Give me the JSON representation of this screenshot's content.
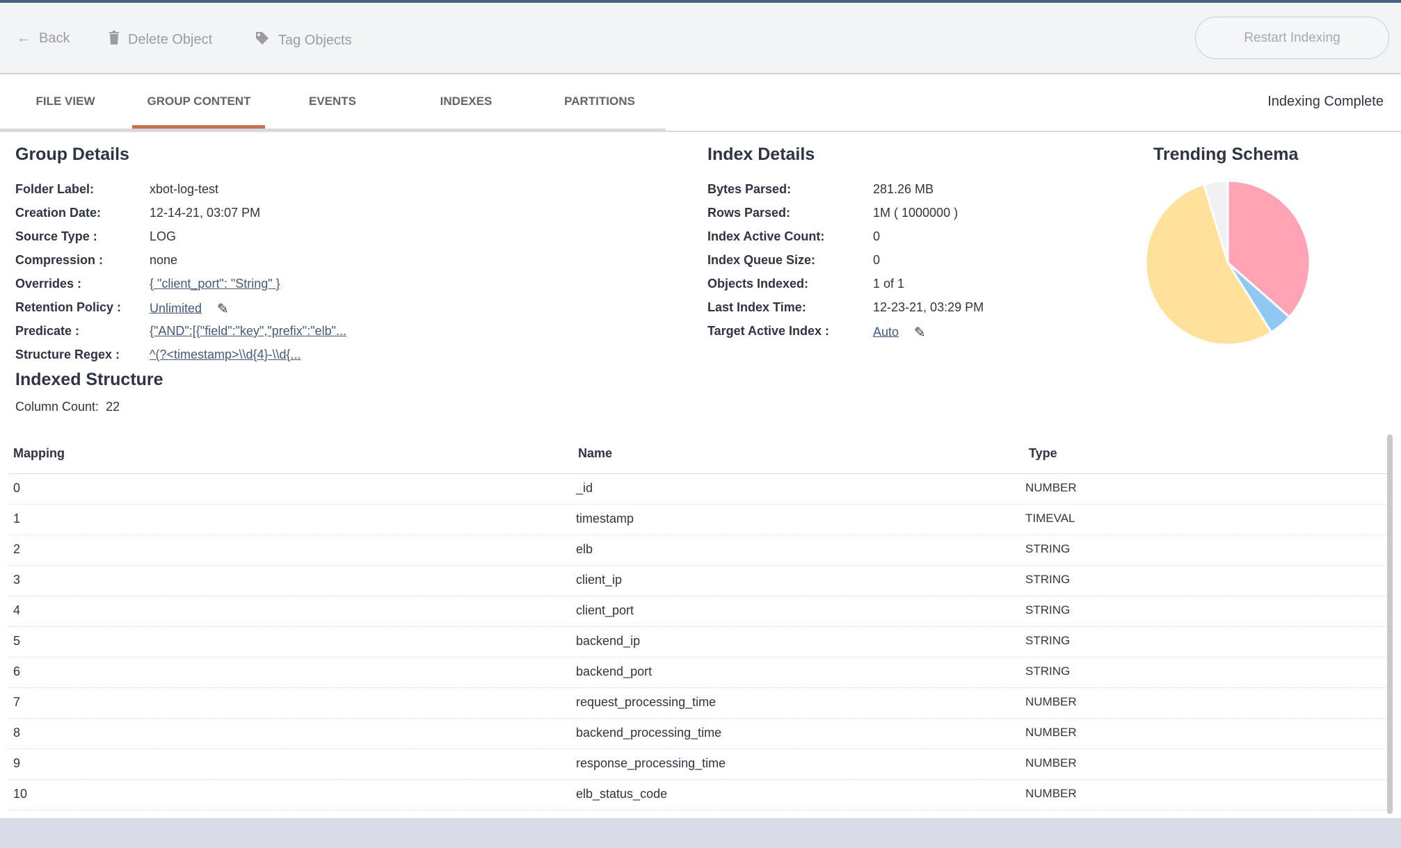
{
  "toolbar": {
    "back": "Back",
    "delete": "Delete Object",
    "tag": "Tag Objects",
    "restart": "Restart Indexing"
  },
  "tabs": [
    "FILE VIEW",
    "GROUP CONTENT",
    "EVENTS",
    "INDEXES",
    "PARTITIONS"
  ],
  "active_tab": "GROUP CONTENT",
  "status": "Indexing Complete",
  "group_details": {
    "title": "Group Details",
    "rows": [
      {
        "label": "Folder Label:",
        "value": "xbot-log-test"
      },
      {
        "label": "Creation Date:",
        "value": "12-14-21, 03:07 PM"
      },
      {
        "label": "Source Type :",
        "value": "LOG"
      },
      {
        "label": "Compression :",
        "value": "none"
      },
      {
        "label": "Overrides :",
        "value": "{ \"client_port\": \"String\" }",
        "link": true
      },
      {
        "label": "Retention Policy :",
        "value": "Unlimited",
        "link": true,
        "editable": true
      },
      {
        "label": "Predicate :",
        "value": "{\"AND\":[{\"field\":\"key\",\"prefix\":\"elb\"...",
        "link": true
      },
      {
        "label": "Structure Regex :",
        "value": "^(?<timestamp>\\\\d{4}-\\\\d{...",
        "link": true
      }
    ]
  },
  "index_details": {
    "title": "Index Details",
    "rows": [
      {
        "label": "Bytes Parsed:",
        "value": "281.26 MB"
      },
      {
        "label": "Rows Parsed:",
        "value": "1M ( 1000000 )"
      },
      {
        "label": "Index Active Count:",
        "value": "0"
      },
      {
        "label": "Index Queue Size:",
        "value": "0"
      },
      {
        "label": "Objects Indexed:",
        "value": "1 of 1"
      },
      {
        "label": "Last Index Time:",
        "value": "12-23-21, 03:29 PM"
      },
      {
        "label": "Target Active Index :",
        "value": "Auto",
        "link": true,
        "editable": true
      }
    ]
  },
  "chart_data": {
    "type": "pie",
    "title": "Trending Schema",
    "values": [
      36.5,
      4.6,
      54.2,
      4.7
    ],
    "colors": [
      "#ffa3b5",
      "#90c8f2",
      "#ffe19c",
      "#f0f1f4"
    ]
  },
  "indexed_structure": {
    "title": "Indexed Structure",
    "column_count_label": "Column Count:",
    "column_count": "22"
  },
  "table": {
    "headers": [
      "Mapping",
      "Name",
      "Type"
    ],
    "rows": [
      [
        "0",
        "_id",
        "NUMBER"
      ],
      [
        "1",
        "timestamp",
        "TIMEVAL"
      ],
      [
        "2",
        "elb",
        "STRING"
      ],
      [
        "3",
        "client_ip",
        "STRING"
      ],
      [
        "4",
        "client_port",
        "STRING"
      ],
      [
        "5",
        "backend_ip",
        "STRING"
      ],
      [
        "6",
        "backend_port",
        "STRING"
      ],
      [
        "7",
        "request_processing_time",
        "NUMBER"
      ],
      [
        "8",
        "backend_processing_time",
        "NUMBER"
      ],
      [
        "9",
        "response_processing_time",
        "NUMBER"
      ],
      [
        "10",
        "elb_status_code",
        "NUMBER"
      ]
    ]
  }
}
